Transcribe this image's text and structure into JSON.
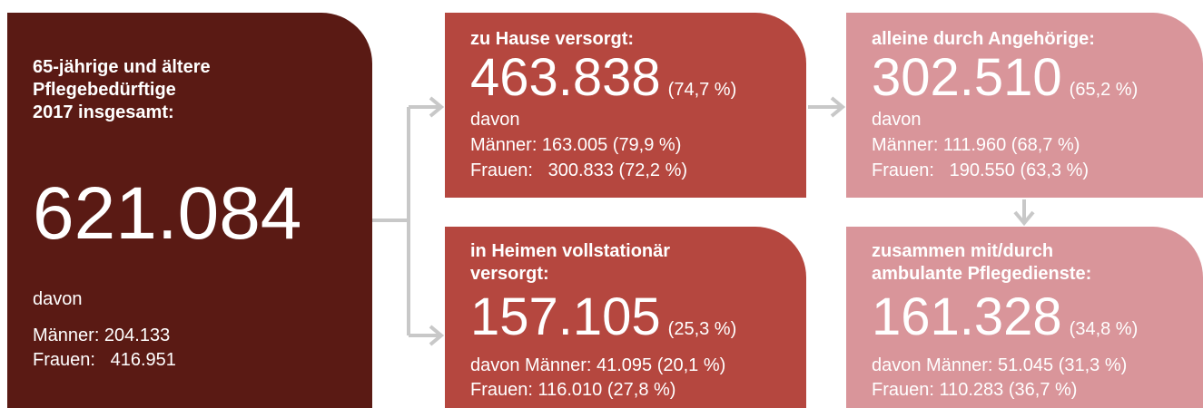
{
  "total": {
    "title": [
      "65-jährige und ältere",
      "Pflegebedürftige",
      "2017 insgesamt:"
    ],
    "number": "621.084",
    "davon": "davon",
    "lines": [
      "Männer: 204.133",
      "Frauen:   416.951"
    ]
  },
  "home": {
    "title": [
      "zu Hause versorgt:"
    ],
    "number": "463.838",
    "percent": "(74,7 %)",
    "lines": [
      "davon",
      "Männer: 163.005 (79,9 %)",
      "Frauen:   300.833 (72,2 %)"
    ]
  },
  "homes_inpatient": {
    "title": [
      "in Heimen vollstationär",
      "versorgt:"
    ],
    "number": "157.105",
    "percent": "(25,3 %)",
    "lines": [
      "davon Männer: 41.095 (20,1 %)",
      "Frauen: 116.010 (27,8 %)"
    ]
  },
  "relatives": {
    "title": [
      "alleine durch Angehörige:"
    ],
    "number": "302.510",
    "percent": "(65,2 %)",
    "lines": [
      "davon",
      "Männer: 111.960 (68,7 %)",
      "Frauen:   190.550 (63,3 %)"
    ]
  },
  "ambulant": {
    "title": [
      "zusammen mit/durch",
      "ambulante Pflegedienste:"
    ],
    "number": "161.328",
    "percent": "(34,8 %)",
    "lines": [
      "davon Männer: 51.045 (31,3 %)",
      "Frauen: 110.283 (36,7 %)"
    ]
  }
}
